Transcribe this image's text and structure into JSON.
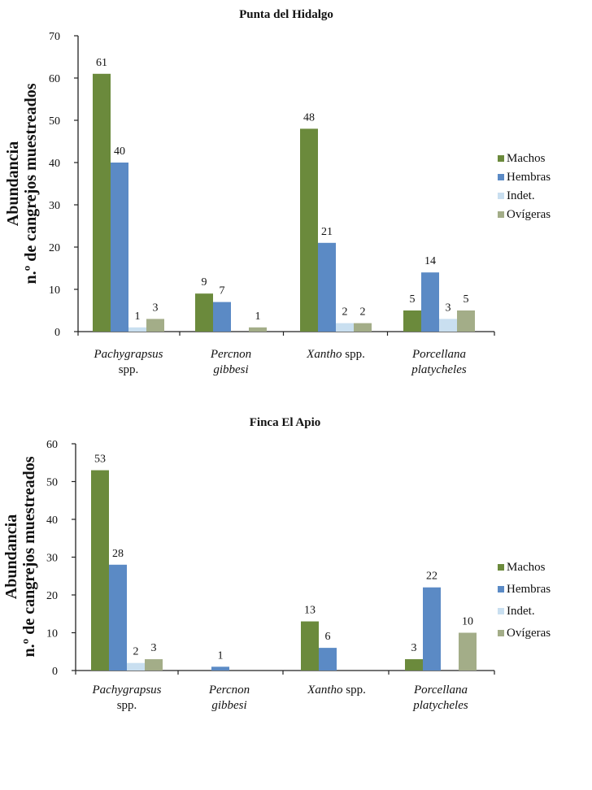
{
  "colors": {
    "Machos": "#6b8a3c",
    "Hembras": "#5b8ac5",
    "Indet.": "#c9dff0",
    "Ovígeras": "#a3ad88"
  },
  "chart_data": [
    {
      "type": "bar",
      "title": "Punta del Hidalgo",
      "ylabel_line1": "Abundancia",
      "ylabel_line2": "n.º de cangrejos muestreados",
      "categories": [
        {
          "genus": "Pachygrapsus",
          "suffix": "",
          "line2": "spp.",
          "line2_italic": false
        },
        {
          "genus": "Percnon",
          "suffix": "",
          "line2": "gibbesi",
          "line2_italic": true
        },
        {
          "genus": "Xantho",
          "suffix": " spp.",
          "line2": "",
          "line2_italic": false
        },
        {
          "genus": "Porcellana",
          "suffix": "",
          "line2": "platycheles",
          "line2_italic": true
        }
      ],
      "ylim": [
        0,
        70
      ],
      "yticks": [
        0,
        10,
        20,
        30,
        40,
        50,
        60,
        70
      ],
      "legend_position": "right",
      "series": [
        {
          "name": "Machos",
          "values": [
            61,
            9,
            48,
            5
          ]
        },
        {
          "name": "Hembras",
          "values": [
            40,
            7,
            21,
            14
          ]
        },
        {
          "name": "Indet.",
          "values": [
            1,
            null,
            2,
            3
          ]
        },
        {
          "name": "Ovígeras",
          "values": [
            3,
            1,
            2,
            5
          ]
        }
      ]
    },
    {
      "type": "bar",
      "title": "Finca El Apio",
      "ylabel_line1": "Abundancia",
      "ylabel_line2": "n.º de cangrejos muestreados",
      "categories": [
        {
          "genus": "Pachygrapsus",
          "suffix": "",
          "line2": "spp.",
          "line2_italic": false
        },
        {
          "genus": "Percnon",
          "suffix": "",
          "line2": "gibbesi",
          "line2_italic": true
        },
        {
          "genus": "Xantho",
          "suffix": " spp.",
          "line2": "",
          "line2_italic": false
        },
        {
          "genus": "Porcellana",
          "suffix": "",
          "line2": "platycheles",
          "line2_italic": true
        }
      ],
      "ylim": [
        0,
        60
      ],
      "yticks": [
        0,
        10,
        20,
        30,
        40,
        50,
        60
      ],
      "legend_position": "right",
      "series": [
        {
          "name": "Machos",
          "values": [
            53,
            null,
            13,
            3
          ]
        },
        {
          "name": "Hembras",
          "values": [
            28,
            1,
            6,
            22
          ]
        },
        {
          "name": "Indet.",
          "values": [
            2,
            null,
            null,
            null
          ]
        },
        {
          "name": "Ovígeras",
          "values": [
            3,
            null,
            null,
            10
          ]
        }
      ]
    }
  ]
}
